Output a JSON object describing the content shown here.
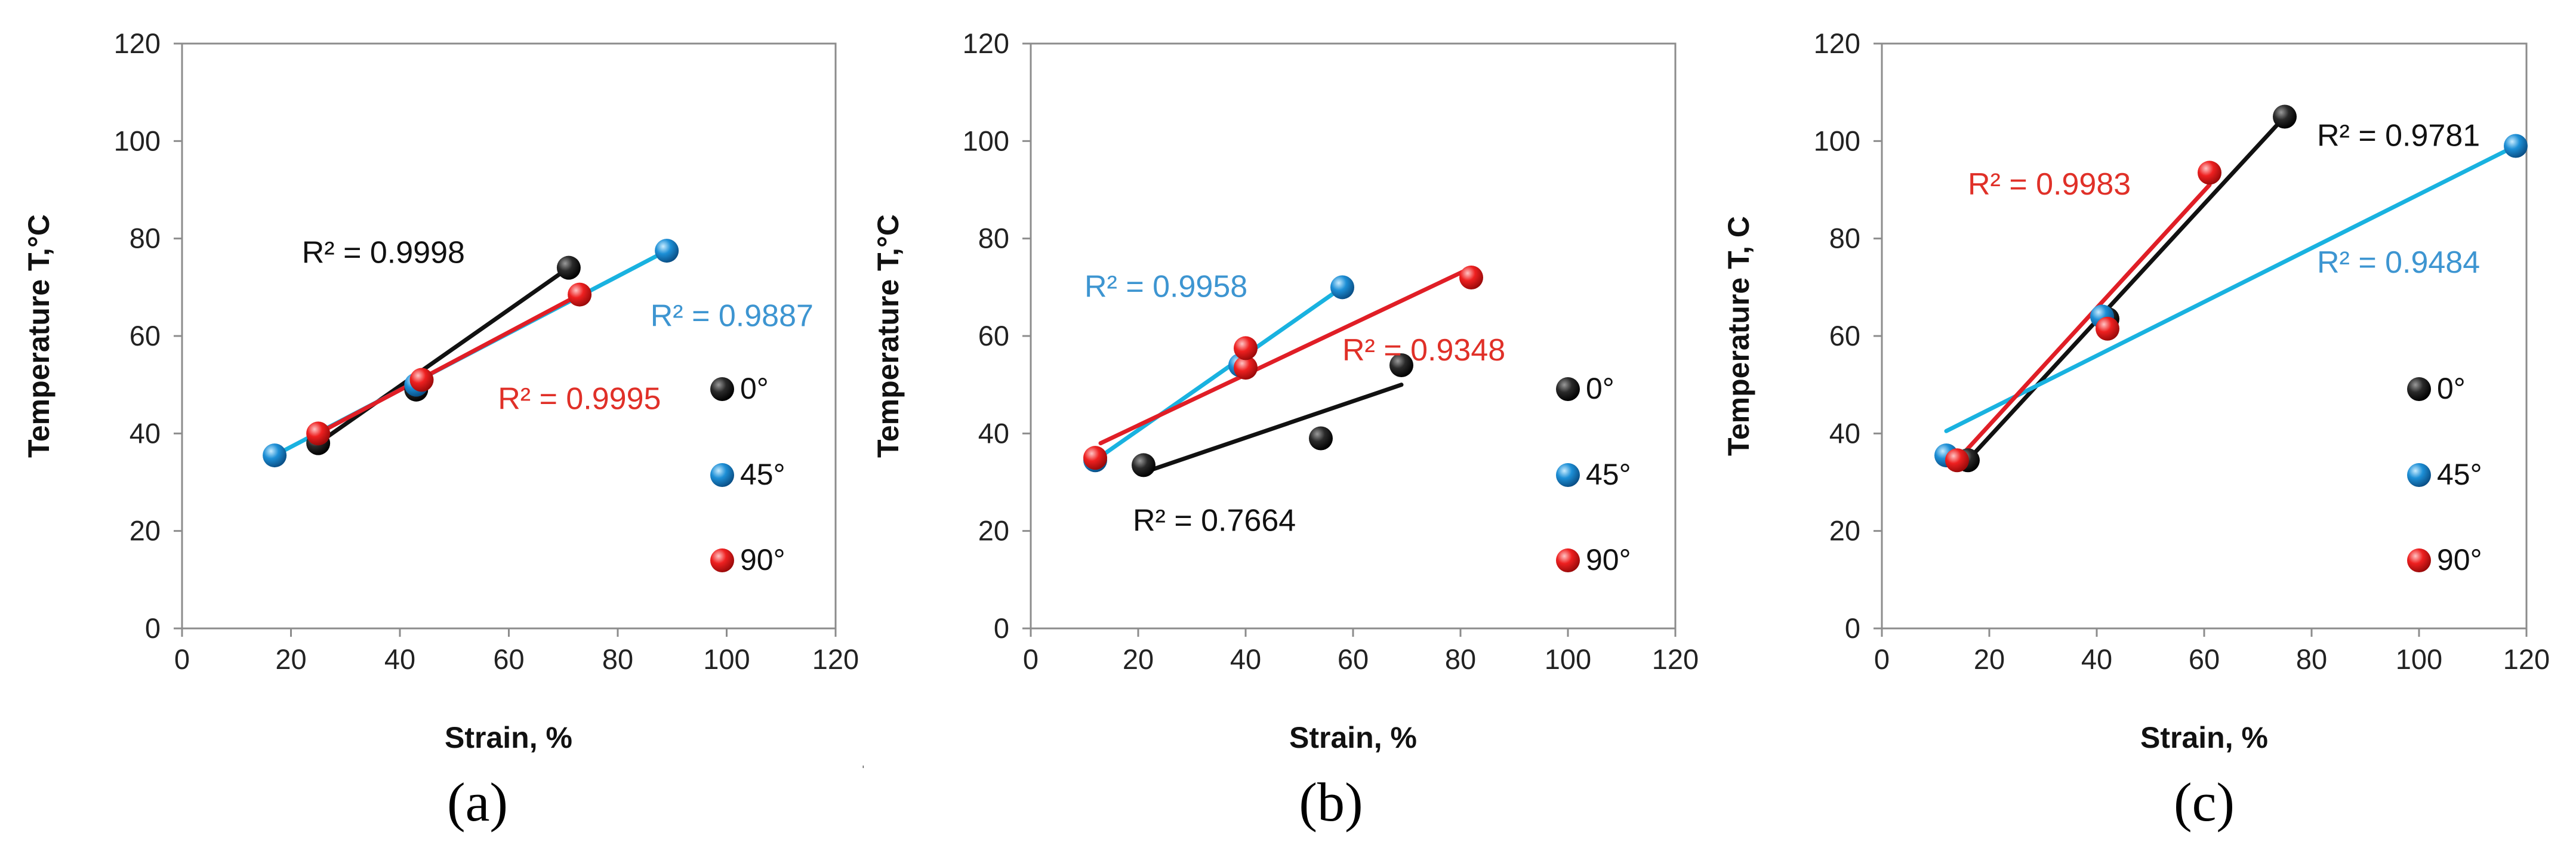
{
  "colors": {
    "0deg": "#111111",
    "45deg": "#1aa0dc",
    "90deg": "#e01e26",
    "r2_0deg": "#111111",
    "r2_45deg": "#3d95d1",
    "r2_90deg": "#e03028"
  },
  "chart_data": [
    {
      "type": "scatter",
      "caption": "(a)",
      "xlabel": "Strain, %",
      "ylabel": "Temperature T,°C",
      "xlim": [
        0,
        120
      ],
      "ylim": [
        0,
        120
      ],
      "xticks": [
        "0",
        "20",
        "40",
        "60",
        "80",
        "100",
        "120"
      ],
      "yticks": [
        "0",
        "20",
        "40",
        "60",
        "80",
        "100",
        "120"
      ],
      "legend": [
        "0°",
        "45°",
        "90°"
      ],
      "series": [
        {
          "name": "0°",
          "color_key": "0deg",
          "points": [
            [
              25,
              38
            ],
            [
              43,
              49
            ],
            [
              71,
              74
            ]
          ],
          "trendline": [
            [
              25,
              38
            ],
            [
              71,
              74
            ]
          ],
          "r2": "R² = 0.9998",
          "r2_pos": [
            22,
            75
          ],
          "r2_color_key": "r2_0deg"
        },
        {
          "name": "45°",
          "color_key": "45deg",
          "points": [
            [
              17,
              35.5
            ],
            [
              43,
              50
            ],
            [
              89,
              77.5
            ]
          ],
          "trendline": [
            [
              17,
              35.5
            ],
            [
              89,
              77.5
            ]
          ],
          "r2": "R² = 0.9887",
          "r2_pos": [
            86,
            62
          ],
          "r2_color_key": "r2_45deg"
        },
        {
          "name": "90°",
          "color_key": "90deg",
          "points": [
            [
              25,
              40
            ],
            [
              44,
              51
            ],
            [
              73,
              68.5
            ]
          ],
          "trendline": [
            [
              25,
              40
            ],
            [
              73,
              68.5
            ]
          ],
          "r2": "R² = 0.9995",
          "r2_pos": [
            58,
            45
          ],
          "r2_color_key": "r2_90deg"
        }
      ]
    },
    {
      "type": "scatter",
      "caption": "(b)",
      "xlabel": "Strain, %",
      "ylabel": "Temperature T,°C",
      "xlim": [
        0,
        120
      ],
      "ylim": [
        0,
        120
      ],
      "xticks": [
        "0",
        "20",
        "40",
        "60",
        "80",
        "100",
        "120"
      ],
      "yticks": [
        "0",
        "20",
        "40",
        "60",
        "80",
        "100",
        "120"
      ],
      "legend": [
        "0°",
        "45°",
        "90°"
      ],
      "series": [
        {
          "name": "0°",
          "color_key": "0deg",
          "points": [
            [
              21,
              33.5
            ],
            [
              54,
              39
            ],
            [
              69,
              54
            ]
          ],
          "trendline": [
            [
              21,
              32
            ],
            [
              69,
              50
            ]
          ],
          "r2": "R² = 0.7664",
          "r2_pos": [
            19,
            20
          ],
          "r2_color_key": "r2_0deg"
        },
        {
          "name": "45°",
          "color_key": "45deg",
          "points": [
            [
              12,
              34.5
            ],
            [
              39,
              54
            ],
            [
              58,
              70
            ]
          ],
          "trendline": [
            [
              12,
              34.5
            ],
            [
              58,
              70
            ]
          ],
          "r2": "R² = 0.9958",
          "r2_pos": [
            10,
            68
          ],
          "r2_color_key": "r2_45deg"
        },
        {
          "name": "90°",
          "color_key": "90deg",
          "points": [
            [
              12,
              35
            ],
            [
              40,
              53.5
            ],
            [
              40,
              57.5
            ],
            [
              82,
              72
            ]
          ],
          "trendline": [
            [
              13,
              38
            ],
            [
              82,
              74
            ]
          ],
          "r2": "R² = 0.9348",
          "r2_pos": [
            58,
            55
          ],
          "r2_color_key": "r2_90deg"
        }
      ]
    },
    {
      "type": "scatter",
      "caption": "(c)",
      "xlabel": "Strain, %",
      "ylabel": "Temperature T, C",
      "xlim": [
        0,
        120
      ],
      "ylim": [
        0,
        120
      ],
      "xticks": [
        "0",
        "20",
        "40",
        "60",
        "80",
        "100",
        "120"
      ],
      "yticks": [
        "0",
        "20",
        "40",
        "60",
        "80",
        "100",
        "120"
      ],
      "legend": [
        "0°",
        "45°",
        "90°"
      ],
      "series": [
        {
          "name": "0°",
          "color_key": "0deg",
          "points": [
            [
              16,
              34.5
            ],
            [
              42,
              63.5
            ],
            [
              75,
              105
            ]
          ],
          "trendline": [
            [
              16,
              34.5
            ],
            [
              75,
              105
            ]
          ],
          "r2": "R² = 0.9781",
          "r2_pos": [
            81,
            99
          ],
          "r2_color_key": "r2_0deg"
        },
        {
          "name": "45°",
          "color_key": "45deg",
          "points": [
            [
              12,
              35.5
            ],
            [
              41,
              64
            ],
            [
              118,
              99
            ]
          ],
          "trendline": [
            [
              12,
              40.5
            ],
            [
              118,
              99
            ]
          ],
          "r2": "R² = 0.9484",
          "r2_pos": [
            81,
            73
          ],
          "r2_color_key": "r2_45deg"
        },
        {
          "name": "90°",
          "color_key": "90deg",
          "points": [
            [
              14,
              34.5
            ],
            [
              42,
              61.5
            ],
            [
              61,
              93.5
            ]
          ],
          "trendline": [
            [
              14,
              34.5
            ],
            [
              61,
              91
            ]
          ],
          "r2": "R² = 0.9983",
          "r2_pos": [
            16,
            89
          ],
          "r2_color_key": "r2_90deg"
        }
      ]
    }
  ]
}
